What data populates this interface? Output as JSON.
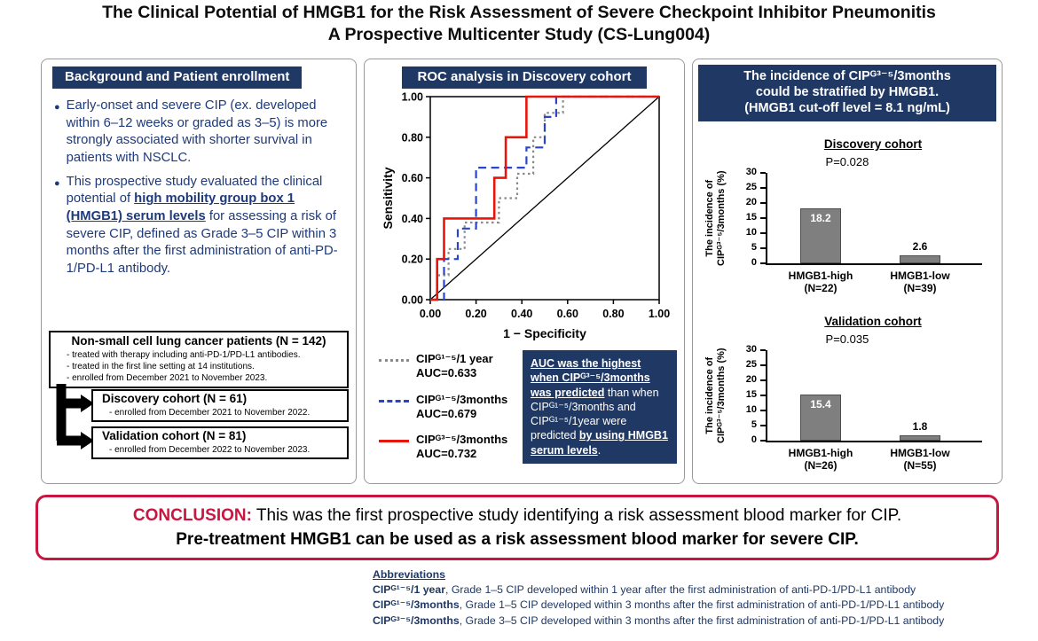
{
  "title": {
    "line1": "The Clinical Potential of HMGB1 for the Risk Assessment of Severe Checkpoint Inhibitor Pneumonitis",
    "line2": "A Prospective Multicenter Study (CS-Lung004)"
  },
  "left_panel": {
    "header": "Background and Patient enrollment",
    "bullet1": "Early-onset and severe CIP (ex. developed within 6–12 weeks or graded as 3–5) is more strongly associated with shorter survival in patients with NSCLC.",
    "bullet2_pre": "This prospective study evaluated the clinical potential of ",
    "bullet2_highlight": "high mobility group box 1 (HMGB1) serum levels",
    "bullet2_post": " for assessing a risk of severe CIP, defined as Grade 3–5 CIP within 3 months after the first administration of anti-PD-1/PD-L1 antibody.",
    "flow": {
      "main_box": {
        "title": "Non-small cell lung cancer patients (N = 142)",
        "lines": [
          "- treated with therapy including anti-PD-1/PD-L1 antibodies.",
          "- treated in the first line setting at 14 institutions.",
          "- enrolled from December 2021 to November 2023."
        ]
      },
      "discovery_box": {
        "title": "Discovery cohort (N = 61)",
        "line": "- enrolled from December 2021 to November 2022."
      },
      "validation_box": {
        "title": "Validation cohort (N = 81)",
        "line": "- enrolled from December 2022 to November 2023."
      }
    }
  },
  "middle_panel": {
    "header": "ROC analysis in Discovery cohort",
    "note": {
      "seg1": "AUC was the highest when CIPᴳ³⁻⁵/3months was predicted",
      "seg2": " than when CIPᴳ¹⁻⁵/3months and CIPᴳ¹⁻⁵/1year were predicted ",
      "seg3": "by using HMGB1 serum levels",
      "seg4": "."
    }
  },
  "right_panel": {
    "header_line1": "The incidence of CIPᴳ³⁻⁵/3months",
    "header_line2": "could be stratified by HMGB1.",
    "header_line3": "(HMGB1 cut-off level = 8.1 ng/mL)"
  },
  "conclusion": {
    "label": "CONCLUSION:",
    "line1": " This was the first prospective study identifying a risk assessment blood marker for CIP.",
    "line2": "Pre-treatment HMGB1 can be used as a risk assessment blood marker for severe CIP."
  },
  "abbreviations": {
    "heading": "Abbreviations",
    "items": [
      {
        "term": "CIPᴳ¹⁻⁵/1 year",
        "def": ", Grade 1–5 CIP developed within 1 year after the first administration of anti-PD-1/PD-L1 antibody"
      },
      {
        "term": "CIPᴳ¹⁻⁵/3months",
        "def": ", Grade 1–5 CIP developed within 3 months after the first administration of anti-PD-1/PD-L1 antibody"
      },
      {
        "term": "CIPᴳ³⁻⁵/3months",
        "def": ", Grade 3–5 CIP developed within 3 months after the first administration of anti-PD-1/PD-L1 antibody"
      }
    ]
  },
  "colors": {
    "navy": "#1f3864",
    "bullet_blue": "#1e3a7a",
    "conclusion_red": "#c81640",
    "bar_gray": "#7f7f7f"
  },
  "chart_data": [
    {
      "type": "line",
      "title": "ROC analysis in Discovery cohort",
      "xlabel": "1 − Specificity",
      "ylabel": "Sensitivity",
      "xlim": [
        0,
        1
      ],
      "ylim": [
        0,
        1
      ],
      "ticks": [
        0.0,
        0.2,
        0.4,
        0.6,
        0.8,
        1.0
      ],
      "diagonal_reference": true,
      "legend_position": "bottom-left",
      "series": [
        {
          "name": "CIPᴳ¹⁻⁵/1 year",
          "auc": 0.633,
          "style": "dotted",
          "color": "#8a8a8a",
          "points": [
            [
              0,
              0
            ],
            [
              0.03,
              0
            ],
            [
              0.03,
              0.12
            ],
            [
              0.08,
              0.12
            ],
            [
              0.08,
              0.25
            ],
            [
              0.15,
              0.25
            ],
            [
              0.15,
              0.38
            ],
            [
              0.3,
              0.38
            ],
            [
              0.3,
              0.5
            ],
            [
              0.38,
              0.5
            ],
            [
              0.38,
              0.62
            ],
            [
              0.45,
              0.62
            ],
            [
              0.45,
              0.8
            ],
            [
              0.5,
              0.8
            ],
            [
              0.5,
              0.92
            ],
            [
              0.58,
              0.92
            ],
            [
              0.58,
              1.0
            ],
            [
              1,
              1
            ]
          ]
        },
        {
          "name": "CIPᴳ¹⁻⁵/3months",
          "auc": 0.679,
          "style": "dashed",
          "color": "#2a46c8",
          "points": [
            [
              0,
              0
            ],
            [
              0.06,
              0
            ],
            [
              0.06,
              0.2
            ],
            [
              0.12,
              0.2
            ],
            [
              0.12,
              0.35
            ],
            [
              0.2,
              0.35
            ],
            [
              0.2,
              0.65
            ],
            [
              0.42,
              0.65
            ],
            [
              0.42,
              0.75
            ],
            [
              0.5,
              0.75
            ],
            [
              0.5,
              0.9
            ],
            [
              0.55,
              0.9
            ],
            [
              0.55,
              1.0
            ],
            [
              1,
              1
            ]
          ]
        },
        {
          "name": "CIPᴳ³⁻⁵/3months",
          "auc": 0.732,
          "style": "solid",
          "color": "#e8150d",
          "points": [
            [
              0,
              0
            ],
            [
              0.03,
              0
            ],
            [
              0.03,
              0.2
            ],
            [
              0.06,
              0.2
            ],
            [
              0.06,
              0.4
            ],
            [
              0.28,
              0.4
            ],
            [
              0.28,
              0.6
            ],
            [
              0.33,
              0.6
            ],
            [
              0.33,
              0.8
            ],
            [
              0.42,
              0.8
            ],
            [
              0.42,
              1.0
            ],
            [
              1,
              1
            ]
          ]
        }
      ]
    },
    {
      "type": "bar",
      "title": "Discovery cohort",
      "p_value": "P=0.028",
      "categories": [
        "HMGB1-high",
        "HMGB1-low"
      ],
      "ns": [
        "(N=22)",
        "(N=39)"
      ],
      "values": [
        18.2,
        2.6
      ],
      "ylabel_line1": "The incidence of",
      "ylabel_line2": "CIPᴳ³⁻⁵/3months (%)",
      "ylim": [
        0,
        30
      ],
      "yticks": [
        0,
        5,
        10,
        15,
        20,
        25,
        30
      ]
    },
    {
      "type": "bar",
      "title": "Validation cohort",
      "p_value": "P=0.035",
      "categories": [
        "HMGB1-high",
        "HMGB1-low"
      ],
      "ns": [
        "(N=26)",
        "(N=55)"
      ],
      "values": [
        15.4,
        1.8
      ],
      "ylabel_line1": "The incidence of",
      "ylabel_line2": "CIPᴳ³⁻⁵/3months (%)",
      "ylim": [
        0,
        30
      ],
      "yticks": [
        0,
        5,
        10,
        15,
        20,
        25,
        30
      ]
    }
  ]
}
